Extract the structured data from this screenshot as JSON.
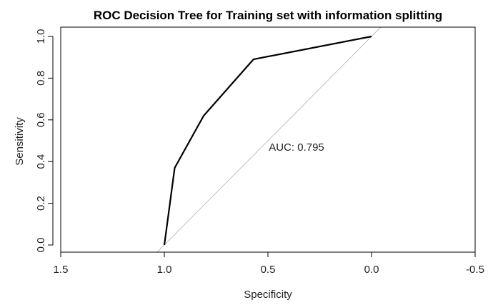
{
  "chart_data": {
    "type": "line",
    "title": "ROC Decision Tree for Training set with information splitting",
    "xlabel": "Specificity",
    "ylabel": "Sensitivity",
    "x_reversed": true,
    "xlim": [
      1.5,
      -0.5
    ],
    "ylim": [
      0.0,
      1.0
    ],
    "x_ticks": [
      1.5,
      1.0,
      0.5,
      0.0,
      -0.5
    ],
    "x_tick_labels": [
      "1.5",
      "1.0",
      "0.5",
      "0.0",
      "-0.5"
    ],
    "y_ticks": [
      0.0,
      0.2,
      0.4,
      0.6,
      0.8,
      1.0
    ],
    "y_tick_labels": [
      "0.0",
      "0.2",
      "0.4",
      "0.6",
      "0.8",
      "1.0"
    ],
    "grid": false,
    "series": [
      {
        "color": "#000000",
        "x": [
          1.0,
          0.95,
          0.81,
          0.57,
          0.0
        ],
        "y": [
          0.0,
          0.37,
          0.62,
          0.89,
          1.0
        ]
      }
    ],
    "reference_line": {
      "color": "#bdbdbd",
      "from": [
        1.0,
        0.0
      ],
      "to": [
        0.0,
        1.0
      ]
    },
    "annotation": {
      "text": "AUC: 0.795",
      "x": 0.5,
      "y": 0.47
    }
  }
}
